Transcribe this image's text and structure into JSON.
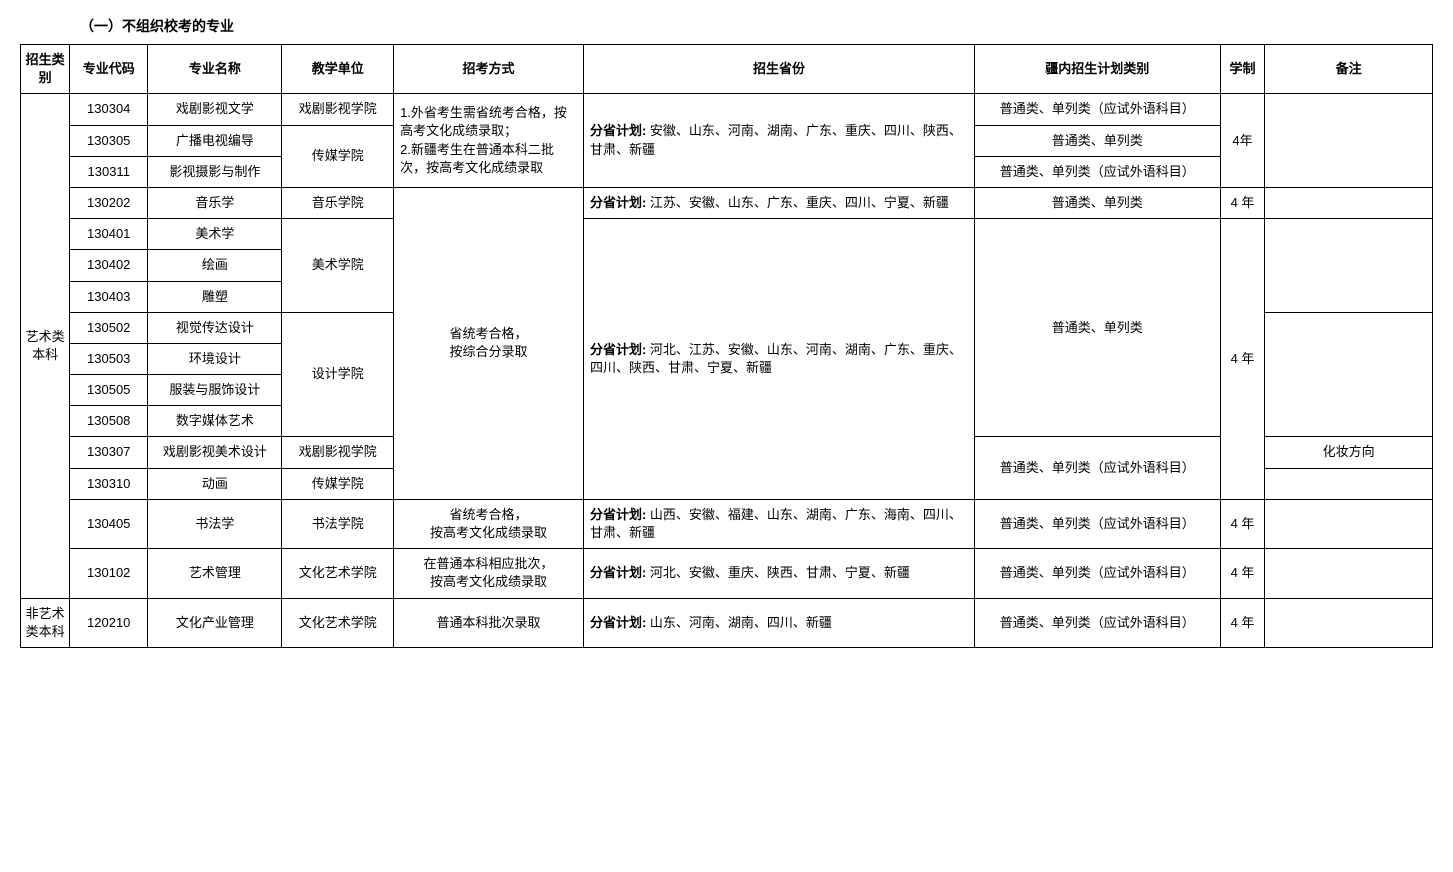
{
  "title": "（一）不组织校考的专业",
  "headers": {
    "category": "招生类别",
    "code": "专业代码",
    "name": "专业名称",
    "unit": "教学单位",
    "method": "招考方式",
    "province": "招生省份",
    "plan": "疆内招生计划类别",
    "duration": "学制",
    "remark": "备注"
  },
  "categories": {
    "art": "艺术类本科",
    "nonart": "非艺术类本科"
  },
  "units": {
    "drama": "戏剧影视学院",
    "media": "传媒学院",
    "music": "音乐学院",
    "art": "美术学院",
    "design": "设计学院",
    "calligraphy": "书法学院",
    "culture": "文化艺术学院"
  },
  "methods": {
    "m1": "1.外省考生需省统考合格，按高考文化成绩录取；\n2.新疆考生在普通本科二批次，按高考文化成绩录取",
    "m2": "省统考合格，\n按综合分录取",
    "m3": "省统考合格，\n按高考文化成绩录取",
    "m4": "在普通本科相应批次，\n按高考文化成绩录取",
    "m5": "普通本科批次录取"
  },
  "provinces": {
    "p1_label": "分省计划:",
    "p1": " 安徽、山东、河南、湖南、广东、重庆、四川、陕西、甘肃、新疆",
    "p2_label": "分省计划:",
    "p2": " 江苏、安徽、山东、广东、重庆、四川、宁夏、新疆",
    "p3_label": "分省计划:",
    "p3": " 河北、江苏、安徽、山东、河南、湖南、广东、重庆、四川、陕西、甘肃、宁夏、新疆",
    "p4_label": "分省计划:",
    "p4": " 山西、安徽、福建、山东、湖南、广东、海南、四川、甘肃、新疆",
    "p5_label": "分省计划:",
    "p5": " 河北、安徽、重庆、陕西、甘肃、宁夏、新疆",
    "p6_label": "分省计划:",
    "p6": " 山东、河南、湖南、四川、新疆"
  },
  "plans": {
    "normal_single_foreign": "普通类、单列类（应试外语科目）",
    "normal_single": "普通类、单列类"
  },
  "durations": {
    "y4": "4年",
    "y4b": "4 年"
  },
  "remarks": {
    "makeup": "化妆方向"
  },
  "rows": {
    "r1": {
      "code": "130304",
      "name": "戏剧影视文学"
    },
    "r2": {
      "code": "130305",
      "name": "广播电视编导"
    },
    "r3": {
      "code": "130311",
      "name": "影视摄影与制作"
    },
    "r4": {
      "code": "130202",
      "name": "音乐学"
    },
    "r5": {
      "code": "130401",
      "name": "美术学"
    },
    "r6": {
      "code": "130402",
      "name": "绘画"
    },
    "r7": {
      "code": "130403",
      "name": "雕塑"
    },
    "r8": {
      "code": "130502",
      "name": "视觉传达设计"
    },
    "r9": {
      "code": "130503",
      "name": "环境设计"
    },
    "r10": {
      "code": "130505",
      "name": "服装与服饰设计"
    },
    "r11": {
      "code": "130508",
      "name": "数字媒体艺术"
    },
    "r12": {
      "code": "130307",
      "name": "戏剧影视美术设计"
    },
    "r13": {
      "code": "130310",
      "name": "动画"
    },
    "r14": {
      "code": "130405",
      "name": "书法学"
    },
    "r15": {
      "code": "130102",
      "name": "艺术管理"
    },
    "r16": {
      "code": "120210",
      "name": "文化产业管理"
    }
  }
}
